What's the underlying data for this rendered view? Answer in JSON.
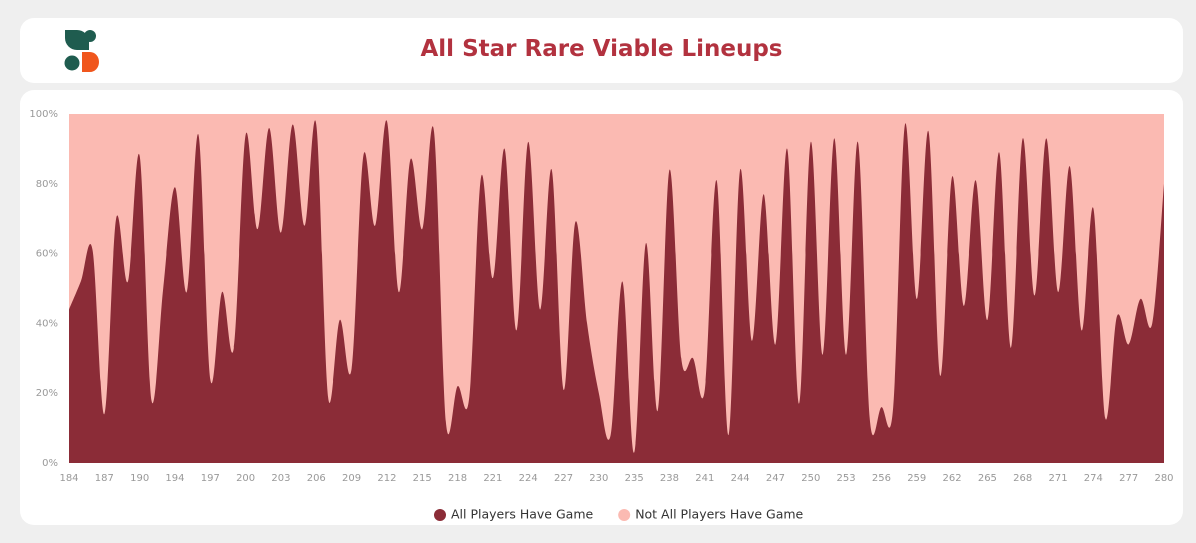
{
  "chart_data": {
    "type": "area",
    "stacked": true,
    "title": "All Star Rare Viable Lineups",
    "categories": [
      "184",
      null,
      null,
      "187",
      null,
      null,
      "190",
      null,
      null,
      "194",
      null,
      null,
      "197",
      null,
      null,
      "200",
      null,
      null,
      "203",
      null,
      null,
      "206",
      null,
      null,
      "209",
      null,
      null,
      "212",
      null,
      null,
      "215",
      null,
      null,
      "218",
      null,
      null,
      "221",
      null,
      null,
      "224",
      null,
      null,
      "227",
      null,
      null,
      "230",
      null,
      null,
      "235",
      null,
      null,
      "238",
      null,
      null,
      "241",
      null,
      null,
      "244",
      null,
      null,
      "247",
      null,
      null,
      "250",
      null,
      null,
      "253",
      null,
      null,
      "256",
      null,
      null,
      "259",
      null,
      null,
      "262",
      null,
      null,
      "265",
      null,
      null,
      "268",
      null,
      null,
      "271",
      null,
      null,
      "274",
      null,
      null,
      "277",
      null,
      null,
      "280"
    ],
    "series": [
      {
        "name": "All Players Have Game",
        "color": "#8b2c37",
        "values": [
          44,
          52,
          61,
          14,
          70,
          52,
          88,
          18,
          50,
          79,
          49,
          94,
          24,
          49,
          33,
          94,
          67,
          96,
          66,
          97,
          68,
          97,
          19,
          41,
          27,
          88,
          68,
          98,
          49,
          87,
          67,
          95,
          12,
          22,
          19,
          82,
          53,
          90,
          38,
          92,
          44,
          84,
          21,
          69,
          40,
          20,
          8,
          52,
          3,
          63,
          15,
          84,
          30,
          30,
          21,
          81,
          8,
          84,
          35,
          77,
          34,
          90,
          17,
          92,
          31,
          93,
          31,
          92,
          13,
          16,
          16,
          97,
          47,
          95,
          25,
          82,
          45,
          81,
          41,
          89,
          33,
          93,
          48,
          93,
          49,
          85,
          38,
          73,
          13,
          42,
          34,
          47,
          40,
          80
        ]
      },
      {
        "name": "Not All Players Have Game",
        "color": "#fbbab2",
        "values": [
          56,
          48,
          39,
          86,
          30,
          48,
          12,
          82,
          50,
          21,
          51,
          6,
          76,
          51,
          67,
          6,
          33,
          4,
          34,
          3,
          32,
          3,
          81,
          59,
          73,
          12,
          32,
          2,
          51,
          13,
          33,
          5,
          88,
          78,
          81,
          18,
          47,
          10,
          62,
          8,
          56,
          16,
          79,
          31,
          60,
          80,
          92,
          48,
          97,
          37,
          85,
          16,
          70,
          70,
          79,
          19,
          92,
          16,
          65,
          23,
          66,
          10,
          83,
          8,
          69,
          7,
          69,
          8,
          87,
          84,
          84,
          3,
          53,
          5,
          75,
          18,
          55,
          19,
          59,
          11,
          67,
          7,
          52,
          7,
          51,
          15,
          62,
          27,
          87,
          58,
          66,
          53,
          60,
          20
        ]
      }
    ],
    "ylim": [
      0,
      100
    ],
    "yticks": [
      {
        "value": 0,
        "label": "0%"
      },
      {
        "value": 20,
        "label": "20%"
      },
      {
        "value": 40,
        "label": "40%"
      },
      {
        "value": 60,
        "label": "60%"
      },
      {
        "value": 80,
        "label": "80%"
      },
      {
        "value": 100,
        "label": "100%"
      }
    ],
    "legend": "bottom"
  }
}
